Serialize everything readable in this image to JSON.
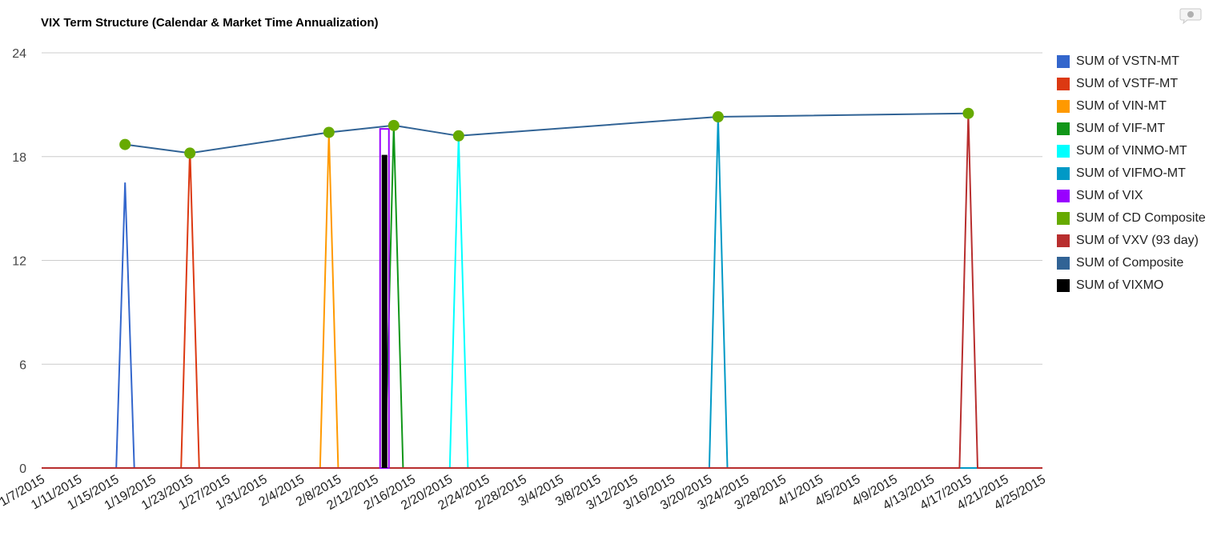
{
  "chart_data": {
    "type": "line",
    "title": "VIX Term Structure (Calendar & Market Time Annualization)",
    "xlabel": "",
    "ylabel": "",
    "ylim": [
      0,
      24
    ],
    "yticks": [
      0,
      6,
      12,
      18,
      24
    ],
    "xlim": [
      "1/7/2015",
      "4/25/2015"
    ],
    "xticks": [
      "1/7/2015",
      "1/11/2015",
      "1/15/2015",
      "1/19/2015",
      "1/23/2015",
      "1/27/2015",
      "1/31/2015",
      "2/4/2015",
      "2/8/2015",
      "2/12/2015",
      "2/16/2015",
      "2/20/2015",
      "2/24/2015",
      "2/28/2015",
      "3/4/2015",
      "3/8/2015",
      "3/12/2015",
      "3/16/2015",
      "3/20/2015",
      "3/24/2015",
      "3/28/2015",
      "4/1/2015",
      "4/5/2015",
      "4/9/2015",
      "4/13/2015",
      "4/17/2015",
      "4/21/2015",
      "4/25/2015"
    ],
    "grid": true,
    "legend_position": "right",
    "series": [
      {
        "name": "SUM of VSTN-MT",
        "color": "#3366cc",
        "mark": "line",
        "points": [
          [
            "1/7/2015",
            0
          ],
          [
            "1/16/2015",
            0
          ],
          [
            "1/16/2015",
            16.5
          ],
          [
            "1/17/2015",
            0
          ],
          [
            "4/25/2015",
            0
          ]
        ]
      },
      {
        "name": "SUM of VSTF-MT",
        "color": "#dc3912",
        "mark": "line",
        "points": [
          [
            "1/7/2015",
            0
          ],
          [
            "1/23/2015",
            0
          ],
          [
            "1/23/2015",
            18.5
          ],
          [
            "1/24/2015",
            0
          ],
          [
            "4/25/2015",
            0
          ]
        ]
      },
      {
        "name": "SUM of VIN-MT",
        "color": "#ff9900",
        "mark": "line",
        "points": [
          [
            "1/7/2015",
            0
          ],
          [
            "2/7/2015",
            0
          ],
          [
            "2/7/2015",
            19.4
          ],
          [
            "2/8/2015",
            0
          ],
          [
            "4/25/2015",
            0
          ]
        ]
      },
      {
        "name": "SUM of VIF-MT",
        "color": "#109618",
        "mark": "line",
        "points": [
          [
            "1/7/2015",
            0
          ],
          [
            "2/14/2015",
            0
          ],
          [
            "2/14/2015",
            19.8
          ],
          [
            "2/15/2015",
            0
          ],
          [
            "4/25/2015",
            0
          ]
        ]
      },
      {
        "name": "SUM of VINMO-MT",
        "color": "#00ffff",
        "mark": "line",
        "points": [
          [
            "1/7/2015",
            0
          ],
          [
            "2/21/2015",
            0
          ],
          [
            "2/21/2015",
            19.2
          ],
          [
            "2/22/2015",
            0
          ],
          [
            "4/25/2015",
            0
          ]
        ]
      },
      {
        "name": "SUM of VIFMO-MT",
        "color": "#0099c6",
        "mark": "line",
        "points": [
          [
            "1/7/2015",
            0
          ],
          [
            "3/21/2015",
            0
          ],
          [
            "3/21/2015",
            20.3
          ],
          [
            "3/22/2015",
            0
          ],
          [
            "4/25/2015",
            0
          ]
        ]
      },
      {
        "name": "SUM of VIX",
        "color": "#9900ff",
        "mark": "bar",
        "x": "2/13/2015",
        "value": 19.6
      },
      {
        "name": "SUM of CD Composite",
        "color": "#66aa00",
        "mark": "points",
        "points": [
          [
            "1/16/2015",
            18.7
          ],
          [
            "1/23/2015",
            18.2
          ],
          [
            "2/7/2015",
            19.4
          ],
          [
            "2/14/2015",
            19.8
          ],
          [
            "2/21/2015",
            19.2
          ],
          [
            "3/21/2015",
            20.3
          ],
          [
            "4/17/2015",
            20.5
          ]
        ]
      },
      {
        "name": "SUM of VXV (93 day)",
        "color": "#b82e2e",
        "mark": "line",
        "points": [
          [
            "1/7/2015",
            0
          ],
          [
            "4/17/2015",
            0
          ],
          [
            "4/17/2015",
            20.5
          ],
          [
            "4/18/2015",
            0
          ],
          [
            "4/25/2015",
            0
          ]
        ]
      },
      {
        "name": "SUM of Composite",
        "color": "#316395",
        "mark": "line",
        "points": [
          [
            "1/16/2015",
            18.7
          ],
          [
            "1/23/2015",
            18.2
          ],
          [
            "2/7/2015",
            19.4
          ],
          [
            "2/14/2015",
            19.8
          ],
          [
            "2/21/2015",
            19.2
          ],
          [
            "3/21/2015",
            20.3
          ],
          [
            "4/17/2015",
            20.5
          ]
        ]
      },
      {
        "name": "SUM of VIXMO",
        "color": "#000000",
        "mark": "bar",
        "x": "2/13/2015",
        "value": 18.1
      }
    ]
  }
}
